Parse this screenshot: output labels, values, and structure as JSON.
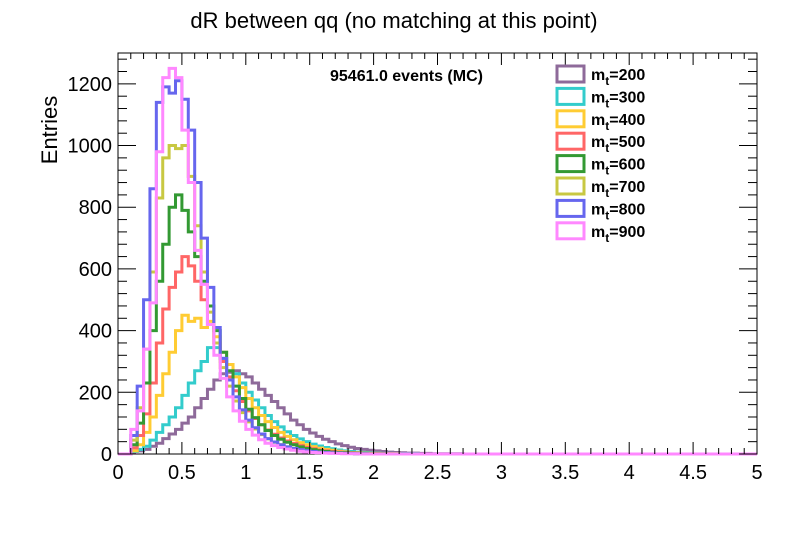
{
  "chart_data": {
    "type": "histogram",
    "title": "dR between qq (no matching at this point)",
    "xlabel": "",
    "ylabel": "Entries",
    "xlim": [
      0,
      5
    ],
    "ylim": [
      0,
      1300
    ],
    "bin_width": 0.05,
    "x_ticks": [
      0,
      0.5,
      1,
      1.5,
      2,
      2.5,
      3,
      3.5,
      4,
      4.5,
      5
    ],
    "x_tick_labels": [
      "0",
      "0.5",
      "1",
      "1.5",
      "2",
      "2.5",
      "3",
      "3.5",
      "4",
      "4.5",
      "5"
    ],
    "y_ticks": [
      0,
      200,
      400,
      600,
      800,
      1000,
      1200
    ],
    "y_tick_labels": [
      "0",
      "200",
      "400",
      "600",
      "800",
      "1000",
      "1200"
    ],
    "annotation": "95461.0 events (MC)",
    "legend_position": "top-right",
    "series": [
      {
        "name": "m_t=200",
        "legend_sub": "t",
        "legend_value": "=200",
        "color": "#8e6a9a",
        "values": [
          0,
          0,
          5,
          10,
          15,
          25,
          35,
          50,
          65,
          80,
          100,
          120,
          150,
          180,
          210,
          240,
          260,
          265,
          270,
          260,
          250,
          230,
          210,
          190,
          170,
          150,
          130,
          110,
          95,
          80,
          68,
          57,
          48,
          40,
          33,
          27,
          22,
          18,
          15,
          12,
          10,
          8,
          6,
          5,
          4,
          3,
          3,
          2,
          2,
          1,
          1,
          1,
          1,
          1,
          0,
          0,
          0,
          0,
          0,
          0,
          0,
          0,
          0,
          0,
          0,
          0,
          0,
          0,
          0,
          0,
          0,
          0,
          0,
          0,
          0,
          0,
          0,
          0,
          0,
          0,
          0,
          0,
          0,
          0,
          0,
          0,
          0,
          0,
          0,
          0,
          0,
          0,
          0,
          0,
          0,
          0,
          0,
          0,
          0,
          0
        ]
      },
      {
        "name": "m_t=300",
        "legend_sub": "t",
        "legend_value": "=300",
        "color": "#33cccc",
        "values": [
          0,
          0,
          8,
          15,
          25,
          45,
          70,
          95,
          120,
          150,
          190,
          230,
          270,
          300,
          345,
          345,
          310,
          290,
          260,
          230,
          200,
          175,
          150,
          125,
          105,
          88,
          72,
          60,
          49,
          40,
          32,
          26,
          21,
          17,
          13,
          10,
          8,
          6,
          5,
          4,
          3,
          2,
          2,
          1,
          1,
          1,
          1,
          0,
          0,
          0,
          0,
          0,
          0,
          0,
          0,
          0,
          0,
          0,
          0,
          0,
          0,
          0,
          0,
          0,
          0,
          0,
          0,
          0,
          0,
          0,
          0,
          0,
          0,
          0,
          0,
          0,
          0,
          0,
          0,
          0,
          0,
          0,
          0,
          0,
          0,
          0,
          0,
          0,
          0,
          0,
          0,
          0,
          0,
          0,
          0,
          0,
          0,
          0,
          0,
          0
        ]
      },
      {
        "name": "m_t=400",
        "legend_sub": "t",
        "legend_value": "=400",
        "color": "#ffcc33",
        "values": [
          0,
          0,
          10,
          30,
          70,
          120,
          190,
          260,
          330,
          400,
          450,
          430,
          440,
          410,
          430,
          380,
          330,
          290,
          250,
          215,
          180,
          150,
          125,
          105,
          86,
          70,
          57,
          46,
          37,
          30,
          24,
          19,
          15,
          12,
          9,
          7,
          5,
          4,
          3,
          2,
          2,
          1,
          1,
          1,
          0,
          0,
          0,
          0,
          0,
          0,
          0,
          0,
          0,
          0,
          0,
          0,
          0,
          0,
          0,
          0,
          0,
          0,
          0,
          0,
          0,
          0,
          0,
          0,
          0,
          0,
          0,
          0,
          0,
          0,
          0,
          0,
          0,
          0,
          0,
          0,
          0,
          0,
          0,
          0,
          0,
          0,
          0,
          0,
          0,
          0,
          0,
          0,
          0,
          0,
          0,
          0,
          0,
          0,
          0,
          0
        ]
      },
      {
        "name": "m_t=500",
        "legend_sub": "t",
        "legend_value": "=500",
        "color": "#ff6666",
        "values": [
          0,
          0,
          20,
          60,
          130,
          230,
          360,
          470,
          540,
          590,
          640,
          610,
          560,
          500,
          420,
          360,
          300,
          250,
          205,
          170,
          140,
          115,
          95,
          78,
          64,
          52,
          42,
          34,
          27,
          21,
          17,
          13,
          10,
          8,
          6,
          5,
          4,
          3,
          2,
          2,
          1,
          1,
          1,
          0,
          0,
          0,
          0,
          0,
          0,
          0,
          0,
          0,
          0,
          0,
          0,
          0,
          0,
          0,
          0,
          0,
          0,
          0,
          0,
          0,
          0,
          0,
          0,
          0,
          0,
          0,
          0,
          0,
          0,
          0,
          0,
          0,
          0,
          0,
          0,
          0,
          0,
          0,
          0,
          0,
          0,
          0,
          0,
          0,
          0,
          0,
          0,
          0,
          0,
          0,
          0,
          0,
          0,
          0,
          0,
          0
        ]
      },
      {
        "name": "m_t=600",
        "legend_sub": "t",
        "legend_value": "=600",
        "color": "#339933",
        "values": [
          0,
          0,
          30,
          100,
          230,
          400,
          560,
          680,
          800,
          840,
          790,
          720,
          640,
          560,
          480,
          400,
          330,
          270,
          220,
          180,
          145,
          118,
          95,
          76,
          60,
          48,
          38,
          30,
          23,
          18,
          14,
          11,
          8,
          6,
          5,
          4,
          3,
          2,
          2,
          1,
          1,
          1,
          0,
          0,
          0,
          0,
          0,
          0,
          0,
          0,
          0,
          0,
          0,
          0,
          0,
          0,
          0,
          0,
          0,
          0,
          0,
          0,
          0,
          0,
          0,
          0,
          0,
          0,
          0,
          0,
          0,
          0,
          0,
          0,
          0,
          0,
          0,
          0,
          0,
          0,
          0,
          0,
          0,
          0,
          0,
          0,
          0,
          0,
          0,
          0,
          0,
          0,
          0,
          0,
          0,
          0,
          0,
          0,
          0,
          0
        ]
      },
      {
        "name": "m_t=700",
        "legend_sub": "t",
        "legend_value": "=700",
        "color": "#c8c842",
        "values": [
          0,
          0,
          45,
          150,
          340,
          590,
          830,
          960,
          1000,
          990,
          1000,
          900,
          740,
          590,
          460,
          360,
          280,
          220,
          172,
          134,
          104,
          81,
          63,
          49,
          38,
          30,
          23,
          18,
          14,
          11,
          8,
          6,
          5,
          4,
          3,
          2,
          2,
          1,
          1,
          1,
          0,
          0,
          0,
          0,
          0,
          0,
          0,
          0,
          0,
          0,
          0,
          0,
          0,
          0,
          0,
          0,
          0,
          0,
          0,
          0,
          0,
          0,
          0,
          0,
          0,
          0,
          0,
          0,
          0,
          0,
          0,
          0,
          0,
          0,
          0,
          0,
          0,
          0,
          0,
          0,
          0,
          0,
          0,
          0,
          0,
          0,
          0,
          0,
          0,
          0,
          0,
          0,
          0,
          0,
          0,
          0,
          0,
          0,
          0,
          0
        ]
      },
      {
        "name": "m_t=800",
        "legend_sub": "t",
        "legend_value": "=800",
        "color": "#6666ee",
        "values": [
          0,
          0,
          60,
          220,
          500,
          860,
          1140,
          1190,
          1170,
          1210,
          1150,
          1050,
          880,
          700,
          540,
          410,
          310,
          240,
          185,
          143,
          110,
          85,
          65,
          50,
          39,
          30,
          23,
          18,
          14,
          11,
          8,
          6,
          5,
          4,
          3,
          2,
          2,
          1,
          1,
          0,
          0,
          0,
          0,
          0,
          0,
          0,
          0,
          0,
          0,
          0,
          0,
          0,
          0,
          0,
          0,
          0,
          0,
          0,
          0,
          0,
          0,
          0,
          0,
          0,
          0,
          0,
          0,
          0,
          0,
          0,
          0,
          0,
          0,
          0,
          0,
          0,
          0,
          0,
          0,
          0,
          0,
          0,
          0,
          0,
          0,
          0,
          0,
          0,
          0,
          0,
          0,
          0,
          0,
          0,
          0,
          0,
          0,
          0,
          0,
          0
        ]
      },
      {
        "name": "m_t=900",
        "legend_sub": "t",
        "legend_value": "=900",
        "color": "#ff88ff",
        "values": [
          0,
          0,
          80,
          140,
          340,
          490,
          980,
          1220,
          1250,
          1220,
          1050,
          880,
          660,
          550,
          420,
          320,
          245,
          185,
          140,
          106,
          80,
          61,
          46,
          35,
          27,
          21,
          16,
          12,
          9,
          7,
          5,
          4,
          3,
          2,
          2,
          1,
          1,
          1,
          0,
          0,
          0,
          0,
          0,
          0,
          0,
          0,
          0,
          0,
          0,
          0,
          0,
          0,
          0,
          0,
          0,
          0,
          0,
          0,
          0,
          0,
          0,
          0,
          0,
          0,
          0,
          0,
          0,
          0,
          0,
          0,
          0,
          0,
          0,
          0,
          0,
          0,
          0,
          0,
          0,
          0,
          0,
          0,
          0,
          0,
          0,
          0,
          0,
          0,
          0,
          0,
          0,
          0,
          0,
          0,
          0,
          0,
          0,
          0,
          0,
          0
        ]
      }
    ]
  }
}
